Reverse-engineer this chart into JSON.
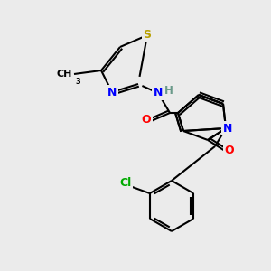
{
  "background_color": "#ebebeb",
  "atom_colors": {
    "S": "#b8a000",
    "N": "#0000ff",
    "O": "#ff0000",
    "Cl": "#00aa00",
    "C": "#000000",
    "H": "#6a9a8a"
  },
  "figsize": [
    3.0,
    3.0
  ],
  "dpi": 100,
  "lw": 1.5
}
